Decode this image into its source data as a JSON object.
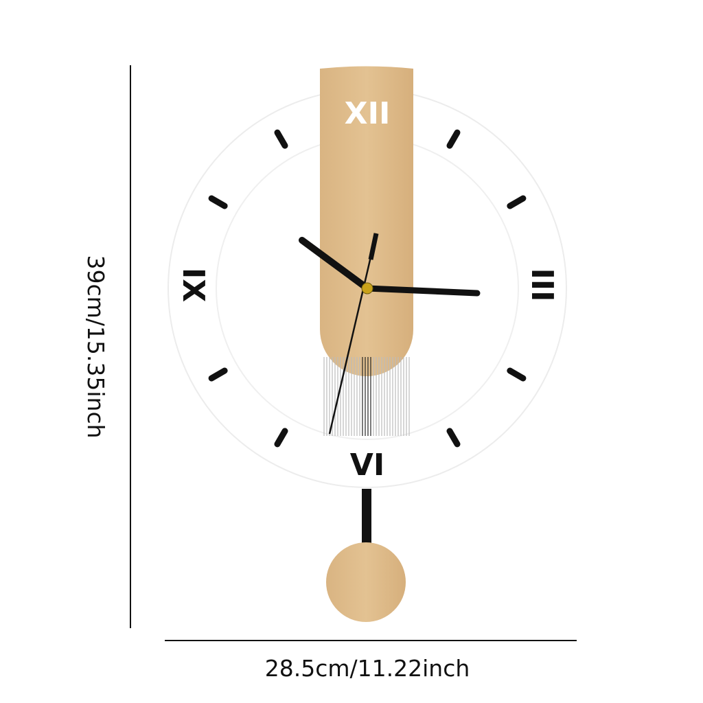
{
  "dimensions": {
    "height_label": "39cm/15.35inch",
    "width_label": "28.5cm/11.22inch"
  },
  "clock": {
    "numerals": {
      "twelve": "XII",
      "three": "III",
      "six": "VI",
      "nine": "IX"
    },
    "time_shown": {
      "hour": 10,
      "minute": 15,
      "second_hand_direction_deg": 195
    },
    "colors": {
      "wood": "#dcb98a",
      "hands": "#111111",
      "hub": "#c9a21a",
      "ring": "#eeeeee"
    }
  }
}
